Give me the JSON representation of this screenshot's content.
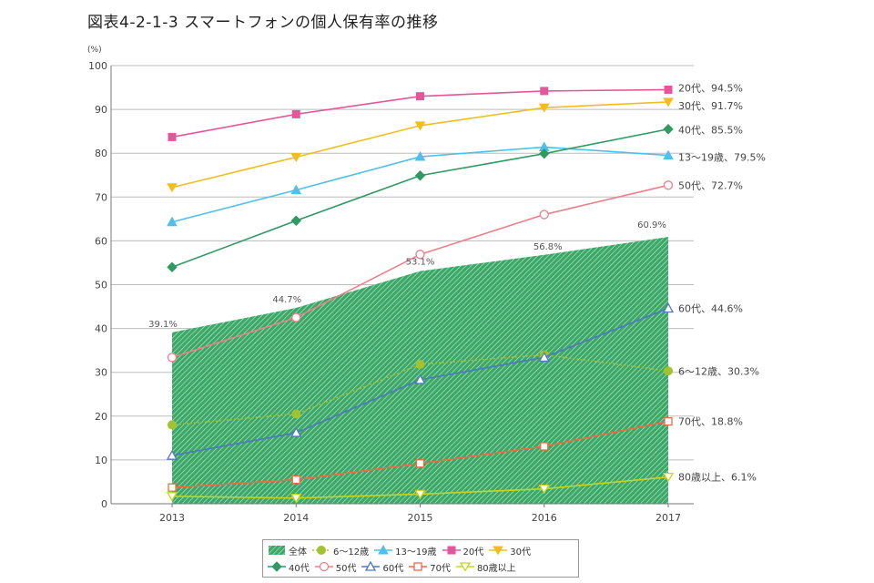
{
  "title": "図表4-2-1-3 スマートフォンの個人保有率の推移",
  "chart_data": {
    "type": "line",
    "x": [
      "2013",
      "2014",
      "2015",
      "2016",
      "2017"
    ],
    "ylabel": "(%)",
    "ylim": [
      0,
      100
    ],
    "yticks": [
      0,
      10,
      20,
      30,
      40,
      50,
      60,
      70,
      80,
      90,
      100
    ],
    "area": {
      "name": "全体",
      "values": [
        39.1,
        44.7,
        53.1,
        56.8,
        60.9
      ],
      "labels": [
        "39.1%",
        "44.7%",
        "53.1%",
        "56.8%",
        "60.9%"
      ],
      "color": "#2e9e58"
    },
    "series": [
      {
        "name": "6～12歳",
        "values": [
          18.0,
          20.5,
          31.8,
          34.0,
          30.3
        ],
        "color": "#a3c230",
        "marker": "circle-filled",
        "dash": "2,2",
        "end_label": "6～12歳、30.3%"
      },
      {
        "name": "13～19歳",
        "values": [
          64.3,
          71.6,
          79.2,
          81.4,
          79.5
        ],
        "color": "#4fc0ea",
        "marker": "triangle-filled",
        "dash": "",
        "end_label": "13～19歳、79.5%"
      },
      {
        "name": "20代",
        "values": [
          83.7,
          88.9,
          93.0,
          94.2,
          94.5
        ],
        "color": "#e4569a",
        "marker": "square-filled",
        "dash": "",
        "end_label": "20代、94.5%"
      },
      {
        "name": "30代",
        "values": [
          72.2,
          79.1,
          86.3,
          90.4,
          91.7
        ],
        "color": "#f2be1e",
        "marker": "triangle-down-filled",
        "dash": "",
        "end_label": "30代、91.7%"
      },
      {
        "name": "40代",
        "values": [
          54.0,
          64.6,
          74.9,
          79.9,
          85.5
        ],
        "color": "#2f9a62",
        "marker": "diamond-filled",
        "dash": "",
        "end_label": "40代、85.5%"
      },
      {
        "name": "50代",
        "values": [
          33.4,
          42.5,
          56.9,
          66.0,
          72.7
        ],
        "color": "#ee7f8a",
        "marker": "circle-open",
        "dash": "",
        "end_label": "50代、72.7%"
      },
      {
        "name": "60代",
        "values": [
          11.0,
          16.2,
          28.3,
          33.4,
          44.6
        ],
        "color": "#4e78c2",
        "marker": "triangle-open",
        "dash": "",
        "end_label": "60代、44.6%"
      },
      {
        "name": "70代",
        "values": [
          3.7,
          5.5,
          9.2,
          13.1,
          18.8
        ],
        "color": "#ef6a43",
        "marker": "square-open",
        "dash": "",
        "end_label": "70代、18.8%"
      },
      {
        "name": "80歳以上",
        "values": [
          1.7,
          1.3,
          2.2,
          3.4,
          6.1
        ],
        "color": "#c6d51e",
        "marker": "triangle-down-open",
        "dash": "",
        "end_label": "80歳以上、6.1%"
      }
    ]
  },
  "legend": {
    "row1": [
      {
        "label": "全体",
        "key": "area"
      },
      {
        "label": "6～12歳",
        "key": "6～12歳"
      },
      {
        "label": "13～19歳",
        "key": "13～19歳"
      },
      {
        "label": "20代",
        "key": "20代"
      },
      {
        "label": "30代",
        "key": "30代"
      }
    ],
    "row2": [
      {
        "label": "40代",
        "key": "40代"
      },
      {
        "label": "50代",
        "key": "50代"
      },
      {
        "label": "60代",
        "key": "60代"
      },
      {
        "label": "70代",
        "key": "70代"
      },
      {
        "label": "80歳以上",
        "key": "80歳以上"
      }
    ]
  }
}
